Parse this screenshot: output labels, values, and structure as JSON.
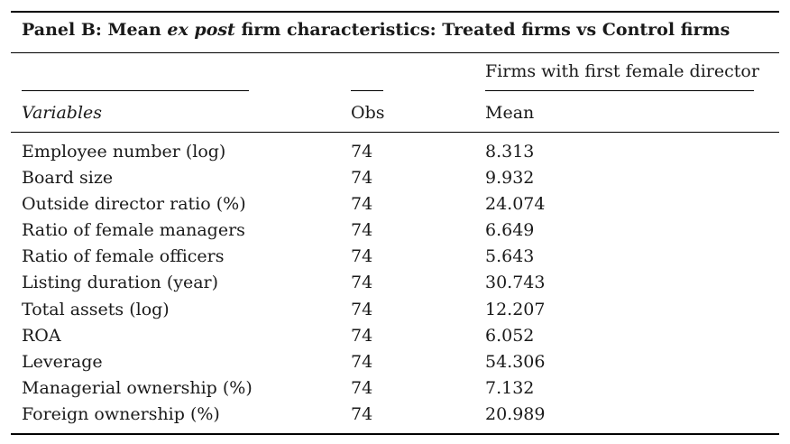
{
  "panel": {
    "title_prefix": "Panel B: Mean ",
    "title_italic": "ex post",
    "title_suffix": " firm characteristics: Treated firms vs Control firms"
  },
  "header": {
    "group_label": "Firms with first female director",
    "variables": "Variables",
    "obs": "Obs",
    "mean": "Mean"
  },
  "rows": [
    {
      "variable": "Employee number (log)",
      "obs": "74",
      "mean": "8.313"
    },
    {
      "variable": "Board size",
      "obs": "74",
      "mean": "9.932"
    },
    {
      "variable": "Outside director ratio (%)",
      "obs": "74",
      "mean": "24.074"
    },
    {
      "variable": "Ratio of female managers",
      "obs": "74",
      "mean": "6.649"
    },
    {
      "variable": "Ratio of female officers",
      "obs": "74",
      "mean": "5.643"
    },
    {
      "variable": "Listing duration (year)",
      "obs": "74",
      "mean": "30.743"
    },
    {
      "variable": "Total assets (log)",
      "obs": "74",
      "mean": "12.207"
    },
    {
      "variable": "ROA",
      "obs": "74",
      "mean": "6.052"
    },
    {
      "variable": "Leverage",
      "obs": "74",
      "mean": "54.306"
    },
    {
      "variable": "Managerial ownership (%)",
      "obs": "74",
      "mean": "7.132"
    },
    {
      "variable": "Foreign ownership (%)",
      "obs": "74",
      "mean": "20.989"
    }
  ]
}
